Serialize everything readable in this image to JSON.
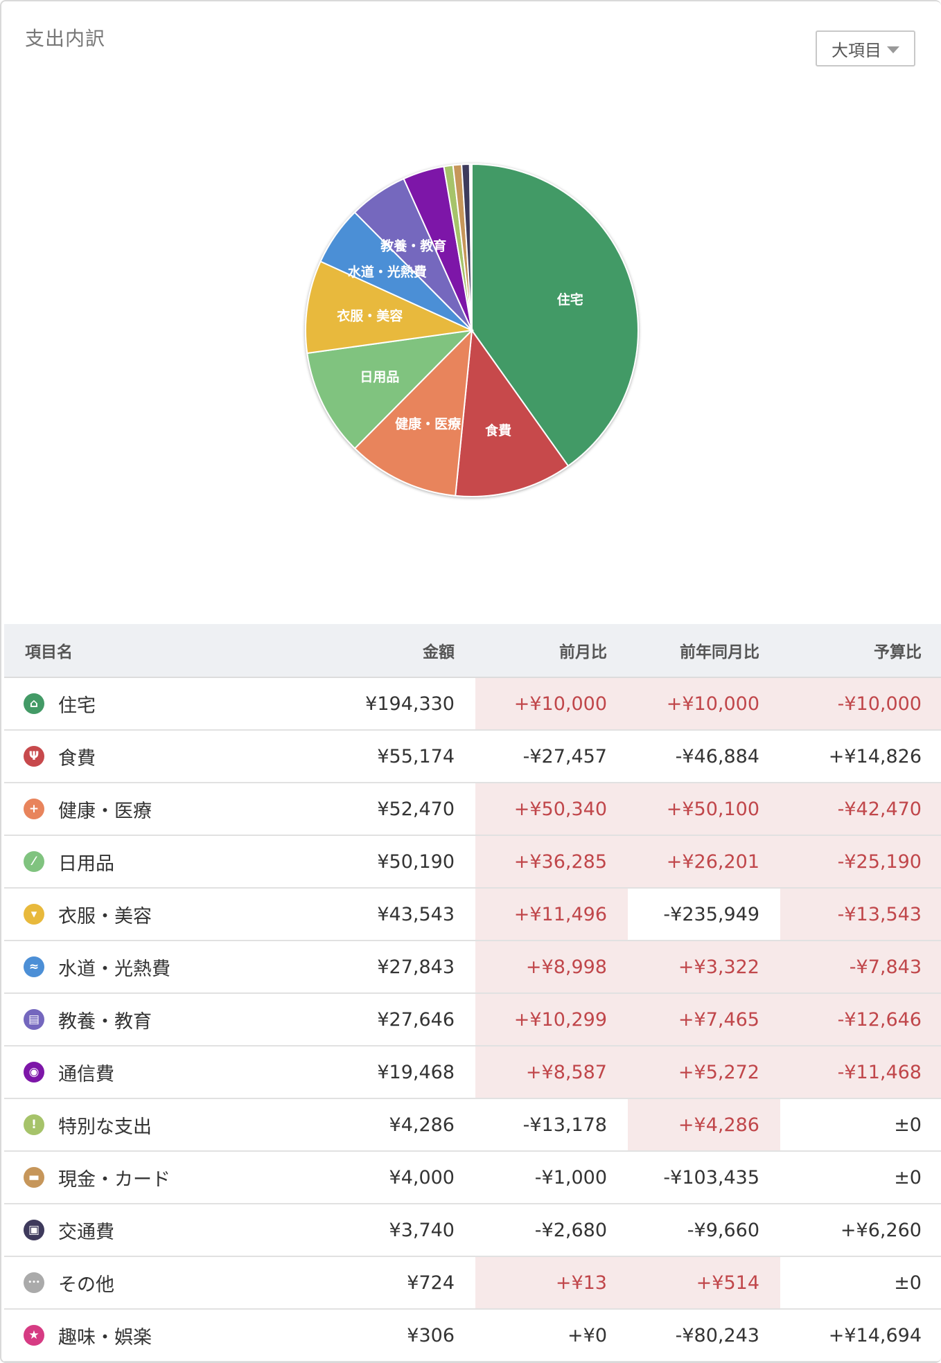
{
  "panel": {
    "title": "支出内訳"
  },
  "selector": {
    "label": "大項目"
  },
  "chart_data": {
    "type": "pie",
    "title": "",
    "slices": [
      {
        "label": "住宅",
        "value": 194330,
        "color": "#439a66"
      },
      {
        "label": "食費",
        "value": 55174,
        "color": "#c7494c"
      },
      {
        "label": "健康・医療",
        "value": 52470,
        "color": "#e8845c"
      },
      {
        "label": "日用品",
        "value": 50190,
        "color": "#80c37f"
      },
      {
        "label": "衣服・美容",
        "value": 43543,
        "color": "#e8b93c"
      },
      {
        "label": "水道・光熱費",
        "value": 27843,
        "color": "#4c8fd6"
      },
      {
        "label": "教養・教育",
        "value": 27646,
        "color": "#7467be"
      },
      {
        "label": "通信費",
        "value": 19468,
        "color": "#7d16a8"
      },
      {
        "label": "特別な支出",
        "value": 4286,
        "color": "#a6c36a"
      },
      {
        "label": "現金・カード",
        "value": 4000,
        "color": "#c6965a"
      },
      {
        "label": "交通費",
        "value": 3740,
        "color": "#3e3a5c"
      },
      {
        "label": "その他",
        "value": 724,
        "color": "#aaaaaa"
      },
      {
        "label": "趣味・娯楽",
        "value": 306,
        "color": "#d63b83"
      }
    ],
    "labeled": [
      "住宅",
      "食費",
      "健康・医療",
      "日用品",
      "衣服・美容",
      "水道・光熱費",
      "教養・教育"
    ]
  },
  "table": {
    "headers": {
      "name": "項目名",
      "amount": "金額",
      "mom": "前月比",
      "yoy": "前年同月比",
      "budget": "予算比"
    },
    "rows": [
      {
        "icon": "house-icon",
        "glyph": "⌂",
        "color": "#439a66",
        "name": "住宅",
        "amount": "¥194,330",
        "mom": "+¥10,000",
        "mom_hl": true,
        "yoy": "+¥10,000",
        "yoy_hl": true,
        "budget": "-¥10,000",
        "budget_hl": true
      },
      {
        "icon": "fork-knife-icon",
        "glyph": "Ψ",
        "color": "#c7494c",
        "name": "食費",
        "amount": "¥55,174",
        "mom": "-¥27,457",
        "mom_hl": false,
        "yoy": "-¥46,884",
        "yoy_hl": false,
        "budget": "+¥14,826",
        "budget_hl": false
      },
      {
        "icon": "medical-cross-icon",
        "glyph": "+",
        "color": "#e8845c",
        "name": "健康・医療",
        "amount": "¥52,470",
        "mom": "+¥50,340",
        "mom_hl": true,
        "yoy": "+¥50,100",
        "yoy_hl": true,
        "budget": "-¥42,470",
        "budget_hl": true
      },
      {
        "icon": "brush-icon",
        "glyph": "⁄",
        "color": "#80c37f",
        "name": "日用品",
        "amount": "¥50,190",
        "mom": "+¥36,285",
        "mom_hl": true,
        "yoy": "+¥26,201",
        "yoy_hl": true,
        "budget": "-¥25,190",
        "budget_hl": true
      },
      {
        "icon": "tshirt-icon",
        "glyph": "▾",
        "color": "#e8b93c",
        "name": "衣服・美容",
        "amount": "¥43,543",
        "mom": "+¥11,496",
        "mom_hl": true,
        "yoy": "-¥235,949",
        "yoy_hl": false,
        "budget": "-¥13,543",
        "budget_hl": true
      },
      {
        "icon": "faucet-icon",
        "glyph": "≈",
        "color": "#4c8fd6",
        "name": "水道・光熱費",
        "amount": "¥27,843",
        "mom": "+¥8,998",
        "mom_hl": true,
        "yoy": "+¥3,322",
        "yoy_hl": true,
        "budget": "-¥7,843",
        "budget_hl": true
      },
      {
        "icon": "book-icon",
        "glyph": "▤",
        "color": "#7467be",
        "name": "教養・教育",
        "amount": "¥27,646",
        "mom": "+¥10,299",
        "mom_hl": true,
        "yoy": "+¥7,465",
        "yoy_hl": true,
        "budget": "-¥12,646",
        "budget_hl": true
      },
      {
        "icon": "antenna-icon",
        "glyph": "◉",
        "color": "#7d16a8",
        "name": "通信費",
        "amount": "¥19,468",
        "mom": "+¥8,587",
        "mom_hl": true,
        "yoy": "+¥5,272",
        "yoy_hl": true,
        "budget": "-¥11,468",
        "budget_hl": true
      },
      {
        "icon": "exclamation-icon",
        "glyph": "!",
        "color": "#a6c36a",
        "name": "特別な支出",
        "amount": "¥4,286",
        "mom": "-¥13,178",
        "mom_hl": false,
        "yoy": "+¥4,286",
        "yoy_hl": true,
        "budget": "±0",
        "budget_hl": false
      },
      {
        "icon": "wallet-icon",
        "glyph": "▬",
        "color": "#c6965a",
        "name": "現金・カード",
        "amount": "¥4,000",
        "mom": "-¥1,000",
        "mom_hl": false,
        "yoy": "-¥103,435",
        "yoy_hl": false,
        "budget": "±0",
        "budget_hl": false
      },
      {
        "icon": "train-icon",
        "glyph": "▣",
        "color": "#3e3a5c",
        "name": "交通費",
        "amount": "¥3,740",
        "mom": "-¥2,680",
        "mom_hl": false,
        "yoy": "-¥9,660",
        "yoy_hl": false,
        "budget": "+¥6,260",
        "budget_hl": false
      },
      {
        "icon": "ellipsis-icon",
        "glyph": "•••",
        "color": "#aaaaaa",
        "name": "その他",
        "amount": "¥724",
        "mom": "+¥13",
        "mom_hl": true,
        "yoy": "+¥514",
        "yoy_hl": true,
        "budget": "±0",
        "budget_hl": false
      },
      {
        "icon": "star-icon",
        "glyph": "★",
        "color": "#d63b83",
        "name": "趣味・娯楽",
        "amount": "¥306",
        "mom": "+¥0",
        "mom_hl": false,
        "yoy": "-¥80,243",
        "yoy_hl": false,
        "budget": "+¥14,694",
        "budget_hl": false
      }
    ]
  }
}
